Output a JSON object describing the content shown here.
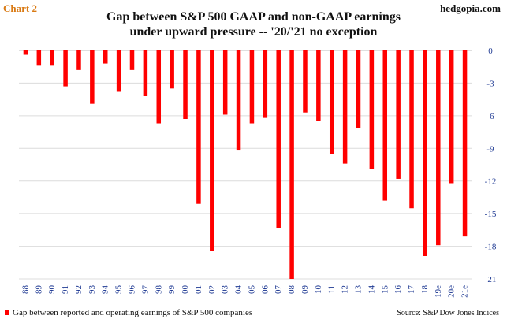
{
  "header": {
    "chart_tag": "Chart 2",
    "site": "hedgopia.com",
    "title_line1": "Gap between S&P 500 GAAP and non-GAAP earnings",
    "title_line2": "under upward pressure -- '20/'21 no exception"
  },
  "footer": {
    "legend_label": "Gap between reported and operating earnings of S&P 500 companies",
    "source": "Source:  S&P Dow Jones Indices"
  },
  "colors": {
    "bar": "#ff0000",
    "axis_labels": "#1f3a93",
    "grid": "#dcdcdc"
  },
  "chart_data": {
    "type": "bar",
    "title": "Gap between S&P 500 GAAP and non-GAAP earnings under upward pressure -- '20/'21 no exception",
    "xlabel": "",
    "ylabel": "",
    "ylim": [
      -21,
      0
    ],
    "yticks": [
      0,
      -3,
      -6,
      -9,
      -12,
      -15,
      -18,
      -21
    ],
    "grid": true,
    "legend_position": "bottom-left",
    "categories": [
      "88",
      "89",
      "90",
      "91",
      "92",
      "93",
      "94",
      "95",
      "96",
      "97",
      "98",
      "99",
      "00",
      "01",
      "02",
      "03",
      "04",
      "05",
      "06",
      "07",
      "08",
      "09",
      "10",
      "11",
      "12",
      "13",
      "14",
      "15",
      "16",
      "17",
      "18",
      "19e",
      "20e",
      "21e"
    ],
    "series": [
      {
        "name": "Gap between reported and operating earnings of S&P 500 companies",
        "values": [
          -0.4,
          -1.4,
          -1.4,
          -3.3,
          -1.8,
          -4.9,
          -1.2,
          -3.8,
          -1.8,
          -4.2,
          -6.7,
          -3.5,
          -6.3,
          -14.1,
          -18.4,
          -5.9,
          -9.2,
          -6.7,
          -6.2,
          -16.3,
          -21.0,
          -5.7,
          -6.5,
          -9.5,
          -10.4,
          -7.1,
          -10.9,
          -13.8,
          -11.8,
          -14.5,
          -18.9,
          -17.9,
          -12.2,
          -17.1
        ]
      }
    ]
  }
}
